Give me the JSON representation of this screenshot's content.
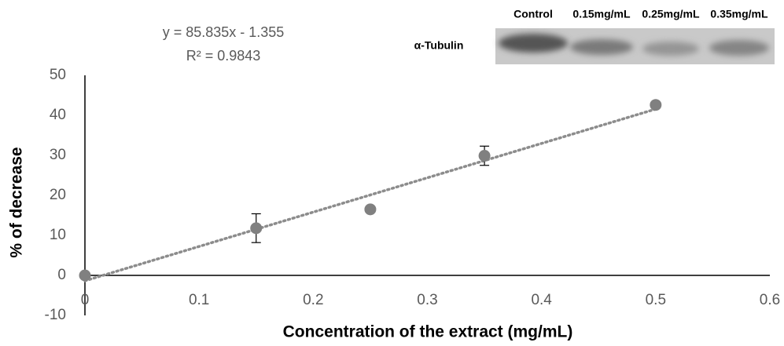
{
  "chart_data": {
    "type": "scatter",
    "x_label": "Concentration of the extract (mg/mL)",
    "y_label": "% of decrease",
    "x": [
      0,
      0.15,
      0.25,
      0.35,
      0.5
    ],
    "series": [
      {
        "color": "#808080",
        "values": [
          0,
          11.8,
          16.5,
          29.9,
          42.6
        ],
        "errors": [
          null,
          3.6,
          null,
          2.4,
          null
        ]
      }
    ],
    "trendline": {
      "slope": 85.835,
      "intercept": -1.355,
      "color": "#8c8c8c",
      "equation": "y = 85.835x - 1.355",
      "r2": "R² = 0.9843"
    },
    "xlim": [
      0,
      0.6
    ],
    "xticks": [
      0,
      0.1,
      0.2,
      0.3,
      0.4,
      0.5,
      0.6
    ],
    "ylim": [
      -10,
      50
    ],
    "yticks": [
      -10,
      0,
      10,
      20,
      30,
      40,
      50
    ],
    "grid": false,
    "inset": {
      "row_label": "α-Tubulin",
      "lanes": [
        "Control",
        "0.15mg/mL",
        "0.25mg/mL",
        "0.35mg/mL"
      ]
    }
  }
}
